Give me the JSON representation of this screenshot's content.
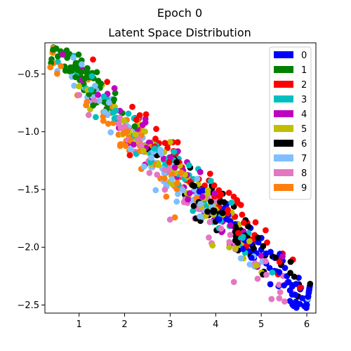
{
  "figure": {
    "suptitle": "Epoch 0"
  },
  "chart_data": {
    "type": "scatter",
    "title": "Latent Space Distribution",
    "xlabel": "",
    "ylabel": "",
    "xlim": [
      0.25,
      6.2
    ],
    "ylim": [
      -2.57,
      -0.23
    ],
    "xticks": [
      1,
      2,
      3,
      4,
      5,
      6
    ],
    "yticks": [
      -2.5,
      -2.0,
      -1.5,
      -1.0,
      -0.5
    ],
    "ytick_labels": [
      "−2.5",
      "−2.0",
      "−1.5",
      "−1.0",
      "−0.5"
    ],
    "grid": false,
    "legend_position": "upper right",
    "distribution": {
      "description_units": "data",
      "main_axis_start": [
        0.55,
        -0.3
      ],
      "main_axis_end": [
        5.9,
        -2.44
      ],
      "points_per_class": 70,
      "class_center_fraction": [
        0.92,
        0.08,
        0.62,
        0.45,
        0.52,
        0.47,
        0.72,
        0.42,
        0.6,
        0.3
      ],
      "class_spread_fraction": [
        0.18,
        0.1,
        0.2,
        0.18,
        0.2,
        0.2,
        0.15,
        0.2,
        0.22,
        0.15
      ],
      "class_lateral_offset": [
        0.02,
        0.0,
        0.12,
        -0.02,
        0.0,
        -0.05,
        0.0,
        -0.08,
        -0.1,
        -0.12
      ]
    },
    "series": [
      {
        "name": "0",
        "color": "#0000ff"
      },
      {
        "name": "1",
        "color": "#008000"
      },
      {
        "name": "2",
        "color": "#ff0000"
      },
      {
        "name": "3",
        "color": "#00bfbf"
      },
      {
        "name": "4",
        "color": "#bf00bf"
      },
      {
        "name": "5",
        "color": "#bfbf00"
      },
      {
        "name": "6",
        "color": "#000000"
      },
      {
        "name": "7",
        "color": "#7fbfff"
      },
      {
        "name": "8",
        "color": "#e377c2"
      },
      {
        "name": "9",
        "color": "#ff7f0e"
      }
    ],
    "highlight_points": [
      {
        "series": "0",
        "x": 5.9,
        "y": -2.44
      },
      {
        "series": "2",
        "x": 5.85,
        "y": -2.35
      },
      {
        "series": "1",
        "x": 0.5,
        "y": -0.28
      },
      {
        "series": "0",
        "x": 5.6,
        "y": -2.3
      },
      {
        "series": "0",
        "x": 5.5,
        "y": -2.33
      },
      {
        "series": "0",
        "x": 5.2,
        "y": -2.32
      },
      {
        "series": "8",
        "x": 4.4,
        "y": -2.3
      }
    ]
  }
}
